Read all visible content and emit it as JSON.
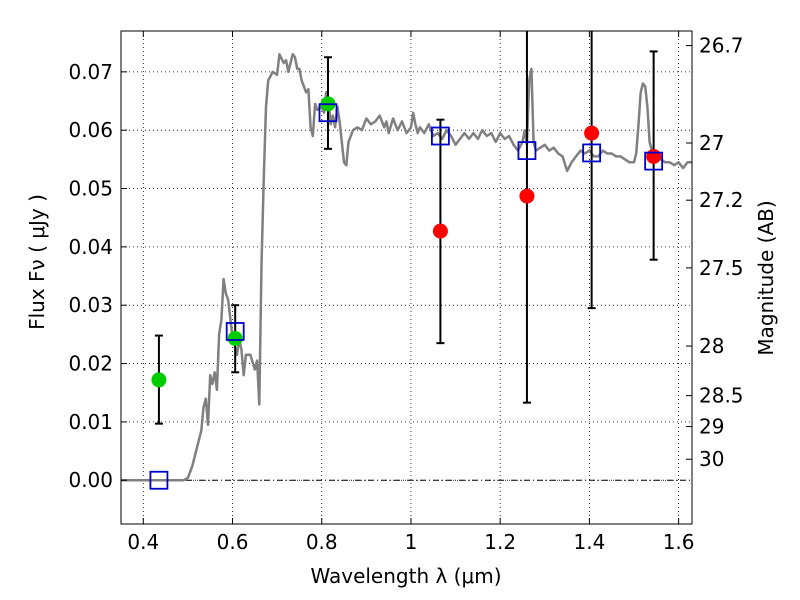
{
  "chart_data": {
    "type": "scatter",
    "xlabel": "Wavelength  λ (μm)",
    "ylabel_left": "Flux  Fν  ( μJy )",
    "ylabel_right": "Magnitude (AB)",
    "xlim": [
      0.35,
      1.63
    ],
    "ylim": [
      -0.0075,
      0.077
    ],
    "grid": true,
    "x_ticks": [
      0.4,
      0.6,
      0.8,
      1.0,
      1.2,
      1.4,
      1.6
    ],
    "x_tick_labels": [
      "0.4",
      "0.6",
      "0.8",
      "1",
      "1.2",
      "1.4",
      "1.6"
    ],
    "y_ticks": [
      0.0,
      0.01,
      0.02,
      0.03,
      0.04,
      0.05,
      0.06,
      0.07
    ],
    "y_tick_labels": [
      "0.00",
      "0.01",
      "0.02",
      "0.03",
      "0.04",
      "0.05",
      "0.06",
      "0.07"
    ],
    "right_ticks": [
      {
        "label": "26.7",
        "flux": 0.0745
      },
      {
        "label": "27",
        "flux": 0.0578
      },
      {
        "label": "27.2",
        "flux": 0.048
      },
      {
        "label": "27.5",
        "flux": 0.0364
      },
      {
        "label": "28",
        "flux": 0.023
      },
      {
        "label": "28.5",
        "flux": 0.0145
      },
      {
        "label": "29",
        "flux": 0.0092
      },
      {
        "label": "30",
        "flux": 0.0036
      }
    ],
    "spectrum": {
      "color": "#808080",
      "points": [
        [
          0.35,
          0.0
        ],
        [
          0.49,
          0.0
        ],
        [
          0.5,
          0.0004
        ],
        [
          0.51,
          0.0025
        ],
        [
          0.52,
          0.0055
        ],
        [
          0.53,
          0.0085
        ],
        [
          0.535,
          0.0125
        ],
        [
          0.54,
          0.014
        ],
        [
          0.545,
          0.0095
        ],
        [
          0.55,
          0.018
        ],
        [
          0.555,
          0.0165
        ],
        [
          0.56,
          0.0185
        ],
        [
          0.565,
          0.0155
        ],
        [
          0.57,
          0.025
        ],
        [
          0.575,
          0.0275
        ],
        [
          0.58,
          0.0345
        ],
        [
          0.585,
          0.032
        ],
        [
          0.59,
          0.031
        ],
        [
          0.6,
          0.0245
        ],
        [
          0.61,
          0.0215
        ],
        [
          0.615,
          0.024
        ],
        [
          0.62,
          0.0225
        ],
        [
          0.625,
          0.018
        ],
        [
          0.63,
          0.0215
        ],
        [
          0.64,
          0.0215
        ],
        [
          0.65,
          0.019
        ],
        [
          0.655,
          0.0205
        ],
        [
          0.66,
          0.013
        ],
        [
          0.665,
          0.037
        ],
        [
          0.67,
          0.052
        ],
        [
          0.675,
          0.064
        ],
        [
          0.68,
          0.0685
        ],
        [
          0.69,
          0.07
        ],
        [
          0.7,
          0.0695
        ],
        [
          0.705,
          0.073
        ],
        [
          0.715,
          0.0715
        ],
        [
          0.72,
          0.072
        ],
        [
          0.725,
          0.07
        ],
        [
          0.73,
          0.0715
        ],
        [
          0.735,
          0.073
        ],
        [
          0.74,
          0.0725
        ],
        [
          0.745,
          0.0705
        ],
        [
          0.75,
          0.0705
        ],
        [
          0.755,
          0.0685
        ],
        [
          0.76,
          0.0675
        ],
        [
          0.765,
          0.0665
        ],
        [
          0.77,
          0.067
        ],
        [
          0.775,
          0.0605
        ],
        [
          0.78,
          0.059
        ],
        [
          0.785,
          0.0645
        ],
        [
          0.79,
          0.0635
        ],
        [
          0.8,
          0.064
        ],
        [
          0.805,
          0.063
        ],
        [
          0.81,
          0.0665
        ],
        [
          0.815,
          0.0655
        ],
        [
          0.82,
          0.061
        ],
        [
          0.825,
          0.0625
        ],
        [
          0.83,
          0.0605
        ],
        [
          0.835,
          0.064
        ],
        [
          0.84,
          0.0615
        ],
        [
          0.845,
          0.058
        ],
        [
          0.85,
          0.0545
        ],
        [
          0.855,
          0.054
        ],
        [
          0.86,
          0.058
        ],
        [
          0.87,
          0.06
        ],
        [
          0.88,
          0.0605
        ],
        [
          0.89,
          0.06
        ],
        [
          0.9,
          0.062
        ],
        [
          0.91,
          0.061
        ],
        [
          0.92,
          0.0615
        ],
        [
          0.93,
          0.0625
        ],
        [
          0.94,
          0.0605
        ],
        [
          0.945,
          0.0615
        ],
        [
          0.95,
          0.0595
        ],
        [
          0.96,
          0.062
        ],
        [
          0.97,
          0.06
        ],
        [
          0.98,
          0.0615
        ],
        [
          0.99,
          0.0595
        ],
        [
          1.0,
          0.0605
        ],
        [
          1.005,
          0.063
        ],
        [
          1.01,
          0.061
        ],
        [
          1.015,
          0.0595
        ],
        [
          1.02,
          0.0605
        ],
        [
          1.03,
          0.0595
        ],
        [
          1.04,
          0.061
        ],
        [
          1.05,
          0.059
        ],
        [
          1.06,
          0.0595
        ],
        [
          1.07,
          0.0585
        ],
        [
          1.08,
          0.06
        ],
        [
          1.09,
          0.059
        ],
        [
          1.1,
          0.0575
        ],
        [
          1.11,
          0.0585
        ],
        [
          1.12,
          0.0595
        ],
        [
          1.13,
          0.0585
        ],
        [
          1.14,
          0.0595
        ],
        [
          1.15,
          0.0585
        ],
        [
          1.16,
          0.06
        ],
        [
          1.17,
          0.059
        ],
        [
          1.18,
          0.0595
        ],
        [
          1.19,
          0.058
        ],
        [
          1.2,
          0.0595
        ],
        [
          1.21,
          0.0585
        ],
        [
          1.22,
          0.059
        ],
        [
          1.23,
          0.0575
        ],
        [
          1.24,
          0.0565
        ],
        [
          1.25,
          0.058
        ],
        [
          1.255,
          0.06
        ],
        [
          1.26,
          0.0575
        ],
        [
          1.265,
          0.0685
        ],
        [
          1.27,
          0.0705
        ],
        [
          1.275,
          0.058
        ],
        [
          1.28,
          0.0565
        ],
        [
          1.29,
          0.057
        ],
        [
          1.3,
          0.0575
        ],
        [
          1.31,
          0.0565
        ],
        [
          1.32,
          0.057
        ],
        [
          1.33,
          0.056
        ],
        [
          1.34,
          0.0555
        ],
        [
          1.35,
          0.053
        ],
        [
          1.36,
          0.0545
        ],
        [
          1.37,
          0.0555
        ],
        [
          1.38,
          0.0565
        ],
        [
          1.39,
          0.056
        ],
        [
          1.4,
          0.0565
        ],
        [
          1.41,
          0.0555
        ],
        [
          1.42,
          0.0555
        ],
        [
          1.43,
          0.0565
        ],
        [
          1.44,
          0.056
        ],
        [
          1.45,
          0.056
        ],
        [
          1.46,
          0.0555
        ],
        [
          1.47,
          0.0555
        ],
        [
          1.48,
          0.055
        ],
        [
          1.49,
          0.0545
        ],
        [
          1.5,
          0.0545
        ],
        [
          1.505,
          0.056
        ],
        [
          1.51,
          0.061
        ],
        [
          1.515,
          0.0665
        ],
        [
          1.52,
          0.068
        ],
        [
          1.525,
          0.0675
        ],
        [
          1.53,
          0.064
        ],
        [
          1.535,
          0.058
        ],
        [
          1.54,
          0.0565
        ],
        [
          1.55,
          0.0555
        ],
        [
          1.56,
          0.055
        ],
        [
          1.57,
          0.0545
        ],
        [
          1.58,
          0.0545
        ],
        [
          1.59,
          0.054
        ],
        [
          1.6,
          0.0545
        ],
        [
          1.61,
          0.0535
        ],
        [
          1.62,
          0.0545
        ],
        [
          1.63,
          0.0545
        ]
      ]
    },
    "errorbars": [
      {
        "x": 0.435,
        "low": 0.0097,
        "high": 0.0248
      },
      {
        "x": 0.606,
        "low": 0.0185,
        "high": 0.03
      },
      {
        "x": 0.814,
        "low": 0.0568,
        "high": 0.0725
      },
      {
        "x": 1.066,
        "low": 0.0235,
        "high": 0.0618
      },
      {
        "x": 1.26,
        "low": 0.0133,
        "high": 0.0775
      },
      {
        "x": 1.405,
        "low": 0.0295,
        "high": 0.0775
      },
      {
        "x": 1.544,
        "low": 0.0378,
        "high": 0.0735
      }
    ],
    "green_points": {
      "color": "#00cc00",
      "points": [
        [
          0.435,
          0.0172
        ],
        [
          0.606,
          0.0243
        ],
        [
          0.814,
          0.0645
        ]
      ]
    },
    "red_points": {
      "color": "#ff0000",
      "points": [
        [
          1.066,
          0.0427
        ],
        [
          1.26,
          0.0487
        ],
        [
          1.405,
          0.0595
        ],
        [
          1.544,
          0.0555
        ]
      ]
    },
    "model_squares": {
      "color": "#0000cc",
      "points": [
        [
          0.435,
          0.0
        ],
        [
          0.606,
          0.0255
        ],
        [
          0.814,
          0.063
        ],
        [
          1.066,
          0.059
        ],
        [
          1.26,
          0.0565
        ],
        [
          1.405,
          0.0561
        ],
        [
          1.544,
          0.0547
        ]
      ]
    },
    "zero_line_color": "#000000"
  }
}
